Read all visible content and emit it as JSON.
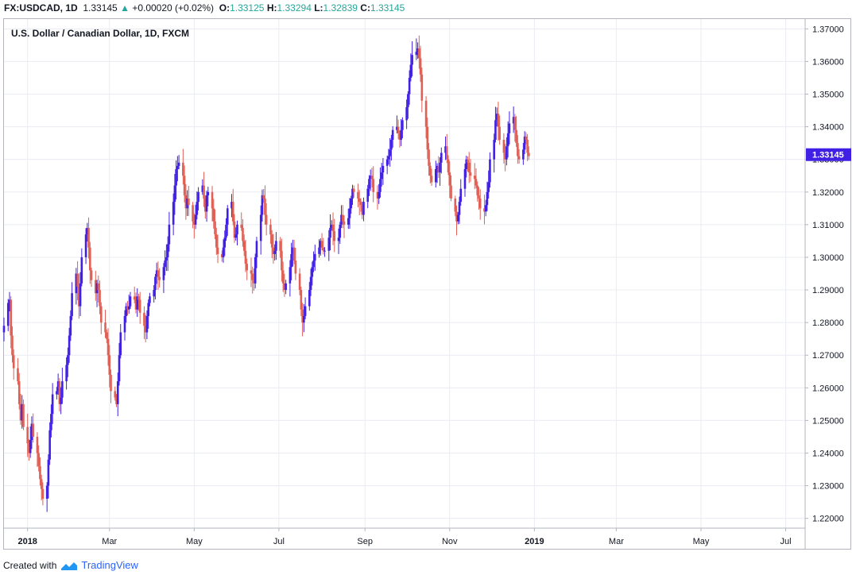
{
  "header": {
    "symbol": "FX:USDCAD, 1D",
    "last": "1.33145",
    "change_icon": "up-triangle-icon",
    "change": "+0.00020 (+0.02%)",
    "open_label": "O:",
    "open": "1.33125",
    "high_label": "H:",
    "high": "1.33294",
    "low_label": "L:",
    "low": "1.32839",
    "close_label": "C:",
    "close": "1.33145"
  },
  "footer": {
    "created_with": "Created with",
    "brand": "TradingView",
    "brand_icon": "tradingview-logo-icon"
  },
  "colors": {
    "up": "#3f20e4",
    "down": "#e06055",
    "grid": "#e9ecf2",
    "price_tag": "#3f20e4"
  },
  "chart_data": {
    "type": "candlestick",
    "title": "U.S. Dollar / Canadian Dollar, 1D, FXCM",
    "price_tag": "1.33145",
    "ylim": [
      1.217,
      1.373
    ],
    "y_ticks": [
      "1.22000",
      "1.23000",
      "1.24000",
      "1.25000",
      "1.26000",
      "1.27000",
      "1.28000",
      "1.29000",
      "1.30000",
      "1.31000",
      "1.32000",
      "1.33000",
      "1.34000",
      "1.35000",
      "1.36000",
      "1.37000"
    ],
    "x_ticks": [
      {
        "label": "2018",
        "date": "2018-01-01",
        "bold": true
      },
      {
        "label": "Mar",
        "date": "2018-03-01"
      },
      {
        "label": "May",
        "date": "2018-05-01"
      },
      {
        "label": "Jul",
        "date": "2018-07-01"
      },
      {
        "label": "Sep",
        "date": "2018-09-01"
      },
      {
        "label": "Nov",
        "date": "2018-11-01"
      },
      {
        "label": "2019",
        "date": "2019-01-01",
        "bold": true
      },
      {
        "label": "Mar",
        "date": "2019-03-01"
      },
      {
        "label": "May",
        "date": "2019-05-01"
      },
      {
        "label": "Jul",
        "date": "2019-07-01"
      }
    ],
    "xlim": [
      "2017-12-15",
      "2019-07-15"
    ],
    "start_date": "2017-12-15",
    "closes": [
      1.279,
      1.286,
      1.287,
      1.276,
      1.27,
      1.266,
      1.262,
      1.255,
      1.25,
      1.255,
      1.248,
      1.243,
      1.24,
      1.244,
      1.249,
      1.245,
      1.24,
      1.236,
      1.232,
      1.229,
      1.226,
      1.23,
      1.238,
      1.247,
      1.252,
      1.258,
      1.259,
      1.262,
      1.255,
      1.257,
      1.262,
      1.267,
      1.27,
      1.276,
      1.282,
      1.289,
      1.295,
      1.291,
      1.285,
      1.292,
      1.3,
      1.307,
      1.309,
      1.303,
      1.296,
      1.293,
      1.289,
      1.292,
      1.29,
      1.285,
      1.28,
      1.277,
      1.275,
      1.27,
      1.264,
      1.259,
      1.257,
      1.255,
      1.262,
      1.27,
      1.277,
      1.282,
      1.285,
      1.284,
      1.285,
      1.288,
      1.287,
      1.284,
      1.288,
      1.287,
      1.283,
      1.279,
      1.277,
      1.282,
      1.286,
      1.288,
      1.29,
      1.294,
      1.296,
      1.294,
      1.293,
      1.297,
      1.299,
      1.3,
      1.304,
      1.31,
      1.317,
      1.322,
      1.327,
      1.328,
      1.329,
      1.325,
      1.319,
      1.315,
      1.318,
      1.316,
      1.311,
      1.31,
      1.313,
      1.317,
      1.32,
      1.322,
      1.318,
      1.314,
      1.319,
      1.32,
      1.315,
      1.311,
      1.307,
      1.303,
      1.301,
      1.3,
      1.303,
      1.306,
      1.31,
      1.315,
      1.317,
      1.311,
      1.306,
      1.307,
      1.31,
      1.309,
      1.305,
      1.302,
      1.298,
      1.296,
      1.295,
      1.293,
      1.292,
      1.3,
      1.305,
      1.313,
      1.319,
      1.318,
      1.313,
      1.31,
      1.307,
      1.303,
      1.301,
      1.302,
      1.305,
      1.302,
      1.296,
      1.292,
      1.29,
      1.292,
      1.297,
      1.301,
      1.303,
      1.299,
      1.295,
      1.29,
      1.284,
      1.28,
      1.282,
      1.285,
      1.29,
      1.294,
      1.297,
      1.299,
      1.301,
      1.303,
      1.305,
      1.303,
      1.302,
      1.302,
      1.306,
      1.309,
      1.31,
      1.308,
      1.305,
      1.306,
      1.31,
      1.313,
      1.311,
      1.31,
      1.312,
      1.315,
      1.318,
      1.321,
      1.32,
      1.318,
      1.317,
      1.316,
      1.313,
      1.317,
      1.321,
      1.324,
      1.325,
      1.324,
      1.32,
      1.318,
      1.32,
      1.324,
      1.326,
      1.328,
      1.33,
      1.331,
      1.333,
      1.336,
      1.339,
      1.34,
      1.338,
      1.336,
      1.339,
      1.342,
      1.346,
      1.35,
      1.355,
      1.359,
      1.362,
      1.363,
      1.364,
      1.361,
      1.356,
      1.348,
      1.34,
      1.333,
      1.328,
      1.325,
      1.323,
      1.327,
      1.328,
      1.326,
      1.329,
      1.332,
      1.334,
      1.33,
      1.326,
      1.322,
      1.318,
      1.314,
      1.311,
      1.313,
      1.317,
      1.321,
      1.327,
      1.33,
      1.329,
      1.326,
      1.325,
      1.324,
      1.322,
      1.319,
      1.318,
      1.315,
      1.314,
      1.316,
      1.32,
      1.323,
      1.33,
      1.336,
      1.342,
      1.344,
      1.34,
      1.336,
      1.332,
      1.33,
      1.334,
      1.338,
      1.341,
      1.343,
      1.339,
      1.335,
      1.331,
      1.33,
      1.333,
      1.337,
      1.336,
      1.332,
      1.331
    ]
  }
}
